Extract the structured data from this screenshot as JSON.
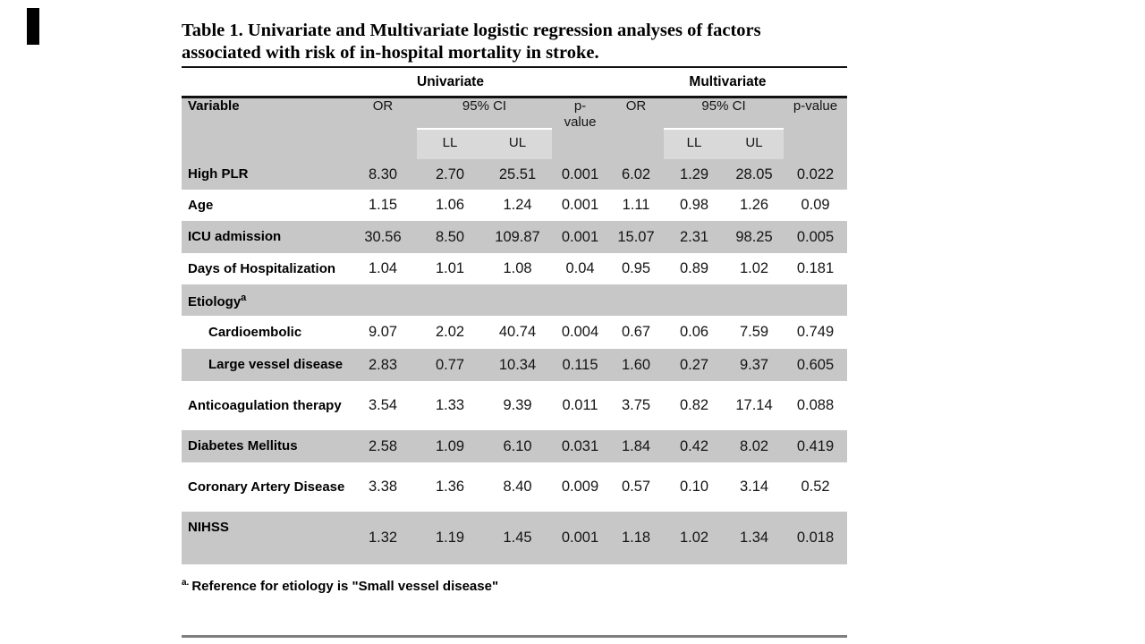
{
  "title": {
    "line1": "Table 1. Univariate and Multivariate logistic regression analyses of factors",
    "line2": "associated with risk of in-hospital mortality in stroke."
  },
  "table": {
    "group_headers": [
      "Univariate",
      "Multivariate"
    ],
    "header": {
      "variable": "Variable",
      "or": "OR",
      "ci": "95% CI",
      "p_uni": "p-\nvalue",
      "p_multi": "p-value",
      "ll": "LL",
      "ul": "UL"
    },
    "rows": [
      {
        "label": "High PLR",
        "indent": false,
        "shaded": true,
        "values": [
          "8.30",
          "2.70",
          "25.51",
          "0.001",
          "6.02",
          "1.29",
          "28.05",
          "0.022"
        ]
      },
      {
        "label": "Age",
        "indent": false,
        "shaded": false,
        "values": [
          "1.15",
          "1.06",
          "1.24",
          "0.001",
          "1.11",
          "0.98",
          "1.26",
          "0.09"
        ]
      },
      {
        "label": "ICU admission",
        "indent": false,
        "shaded": true,
        "values": [
          "30.56",
          "8.50",
          "109.87",
          "0.001",
          "15.07",
          "2.31",
          "98.25",
          "0.005"
        ]
      },
      {
        "label": "Days of Hospitalization",
        "indent": false,
        "shaded": false,
        "values": [
          "1.04",
          "1.01",
          "1.08",
          "0.04",
          "0.95",
          "0.89",
          "1.02",
          "0.181"
        ]
      },
      {
        "label": "Etiology",
        "sup": "a",
        "indent": false,
        "shaded": true,
        "values": [
          "",
          "",
          "",
          "",
          "",
          "",
          "",
          ""
        ]
      },
      {
        "label": "Cardioembolic",
        "indent": true,
        "shaded": false,
        "values": [
          "9.07",
          "2.02",
          "40.74",
          "0.004",
          "0.67",
          "0.06",
          "7.59",
          "0.749"
        ]
      },
      {
        "label": "Large vessel disease",
        "indent": true,
        "shaded": true,
        "values": [
          "2.83",
          "0.77",
          "10.34",
          "0.115",
          "1.60",
          "0.27",
          "9.37",
          "0.605"
        ]
      },
      {
        "label": "Anticoagulation therapy",
        "indent": false,
        "shaded": false,
        "values": [
          "3.54",
          "1.33",
          "9.39",
          "0.011",
          "3.75",
          "0.82",
          "17.14",
          "0.088"
        ]
      },
      {
        "label": "Diabetes Mellitus",
        "indent": false,
        "shaded": true,
        "values": [
          "2.58",
          "1.09",
          "6.10",
          "0.031",
          "1.84",
          "0.42",
          "8.02",
          "0.419"
        ]
      },
      {
        "label": "Coronary Artery Disease",
        "indent": false,
        "shaded": false,
        "values": [
          "3.38",
          "1.36",
          "8.40",
          "0.009",
          "0.57",
          "0.10",
          "3.14",
          "0.52"
        ]
      },
      {
        "label": "NIHSS",
        "indent": false,
        "shaded": true,
        "values": [
          "1.32",
          "1.19",
          "1.45",
          "0.001",
          "1.18",
          "1.02",
          "1.34",
          "0.018"
        ]
      }
    ],
    "footnote": {
      "sup": "a.",
      "text": "Reference for etiology is \"Small vessel disease\""
    }
  },
  "colors": {
    "band_gray": "#c7c7c7",
    "subheader_gray": "#d9d9d9",
    "rule_black": "#111111",
    "rule_gray": "#7f7f7f"
  }
}
